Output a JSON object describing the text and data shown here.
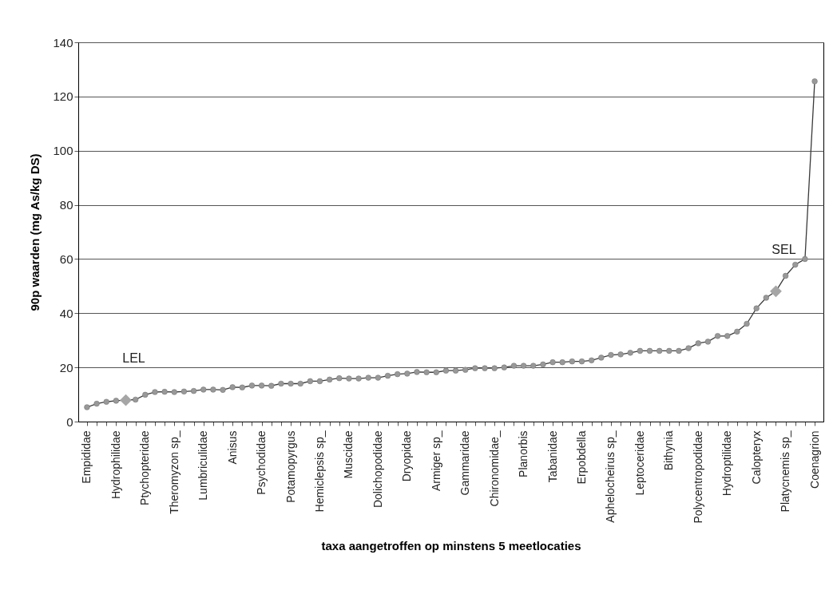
{
  "chart_data": {
    "type": "line",
    "xlabel": "taxa aangetroffen op minstens 5 meetlocaties",
    "ylabel": "90p waarden (mg As/kg DS)",
    "categories": [
      "Empididae",
      null,
      null,
      "Hydrophilidae",
      null,
      null,
      "Ptychopteridae",
      null,
      null,
      "Theromyzon sp_",
      null,
      null,
      "Lumbriculidae",
      null,
      null,
      "Anisus",
      null,
      null,
      "Psychodidae",
      null,
      null,
      "Potamopyrgus",
      null,
      null,
      "Hemiclepsis sp_",
      null,
      null,
      "Muscidae",
      null,
      null,
      "Dolichopodidae",
      null,
      null,
      "Dryopidae",
      null,
      null,
      "Armiger sp_",
      null,
      null,
      "Gammaridae",
      null,
      null,
      "Chironomidae_",
      null,
      null,
      "Planorbis",
      null,
      null,
      "Tabanidae",
      null,
      null,
      "Erpobdella",
      null,
      null,
      "Aphelocheirus sp_",
      null,
      null,
      "Leptoceridae",
      null,
      null,
      "Bithynia",
      null,
      null,
      "Polycentropodidae",
      null,
      null,
      "Hydroptilidae",
      null,
      null,
      "Calopteryx",
      null,
      null,
      "Platycnemis sp_",
      null,
      null,
      "Coenagrion"
    ],
    "series": [
      {
        "color": "#999999",
        "values": [
          5.3,
          6.6,
          7.3,
          7.7,
          7.9,
          8.1,
          9.9,
          10.9,
          11.0,
          10.9,
          11.1,
          11.3,
          11.8,
          11.8,
          11.7,
          12.7,
          12.6,
          13.3,
          13.3,
          13.2,
          14.0,
          14.0,
          14.0,
          14.9,
          14.9,
          15.5,
          16.0,
          15.9,
          15.9,
          16.2,
          16.2,
          16.9,
          17.5,
          17.7,
          18.3,
          18.2,
          18.2,
          18.8,
          18.8,
          19.1,
          19.7,
          19.7,
          19.7,
          20.0,
          20.6,
          20.6,
          20.6,
          21.1,
          21.9,
          21.9,
          22.2,
          22.2,
          22.6,
          23.6,
          24.6,
          24.8,
          25.4,
          26.1,
          26.1,
          26.1,
          26.1,
          26.1,
          27.1,
          28.9,
          29.5,
          31.6,
          31.6,
          33.2,
          36.1,
          41.8,
          45.7,
          48.1,
          53.8,
          57.9,
          60.0,
          125.6
        ]
      },
      {
        "type": "scatter",
        "marker": "diamond",
        "color": "#a6a6a6",
        "values": [
          null,
          null,
          null,
          null,
          7.9,
          null,
          null,
          null,
          null,
          null,
          null,
          null,
          null,
          null,
          null,
          null,
          null,
          null,
          null,
          null,
          null,
          null,
          null,
          null,
          null,
          null,
          null,
          null,
          null,
          null,
          null,
          null,
          null,
          null,
          null,
          null,
          null,
          null,
          null,
          null,
          null,
          null,
          null,
          null,
          null,
          null,
          null,
          null,
          null,
          null,
          null,
          null,
          null,
          null,
          null,
          null,
          null,
          null,
          null,
          null,
          null,
          null,
          null,
          null,
          null,
          null,
          null,
          null,
          null,
          null,
          null,
          48.1,
          null,
          null,
          null,
          null
        ]
      }
    ],
    "annotations": [
      "LEL",
      "SEL"
    ],
    "ylim": [
      0,
      140
    ],
    "yticks": [
      0,
      20,
      40,
      60,
      80,
      100,
      120,
      140
    ],
    "grid": "y",
    "marker": "circle"
  }
}
